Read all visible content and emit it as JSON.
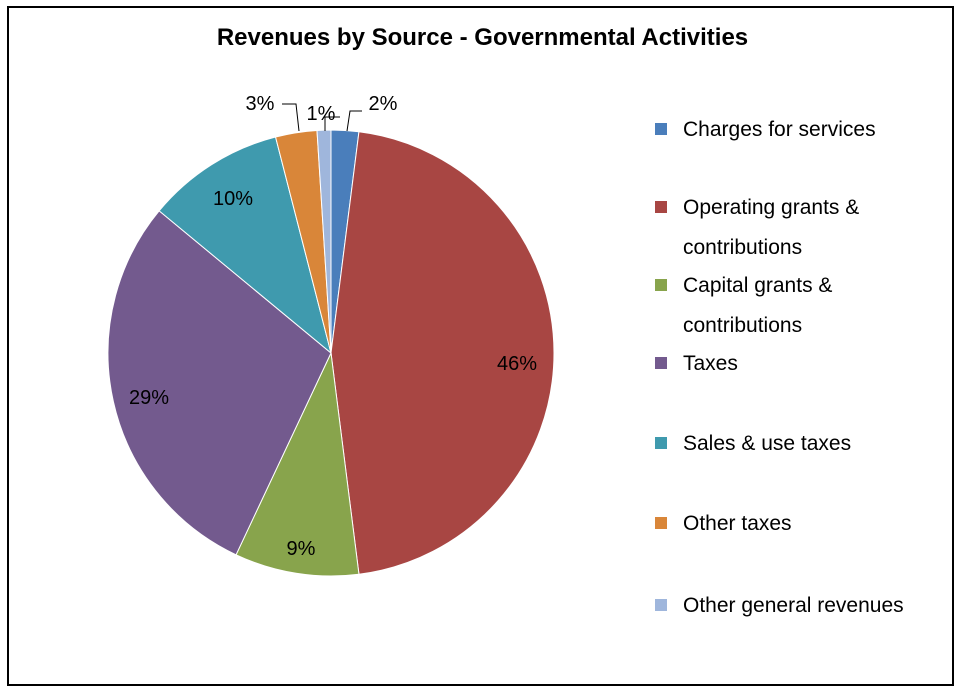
{
  "chart_data": {
    "type": "pie",
    "title": "Revenues by Source - Governmental Activities",
    "legend_position": "right",
    "slices": [
      {
        "name": "Charges for services",
        "value": 2,
        "label": "2%",
        "color": "#4a7ebb"
      },
      {
        "name": "Operating grants & contributions",
        "value": 46,
        "label": "46%",
        "color": "#a84643"
      },
      {
        "name": "Capital grants & contributions",
        "value": 9,
        "label": "9%",
        "color": "#88a44c"
      },
      {
        "name": "Taxes",
        "value": 29,
        "label": "29%",
        "color": "#735a8e"
      },
      {
        "name": "Sales & use taxes",
        "value": 10,
        "label": "10%",
        "color": "#3f9aae"
      },
      {
        "name": "Other taxes",
        "value": 3,
        "label": "3%",
        "color": "#d98639"
      },
      {
        "name": "Other general revenues",
        "value": 1,
        "label": "1%",
        "color": "#9fb6dc"
      }
    ]
  }
}
